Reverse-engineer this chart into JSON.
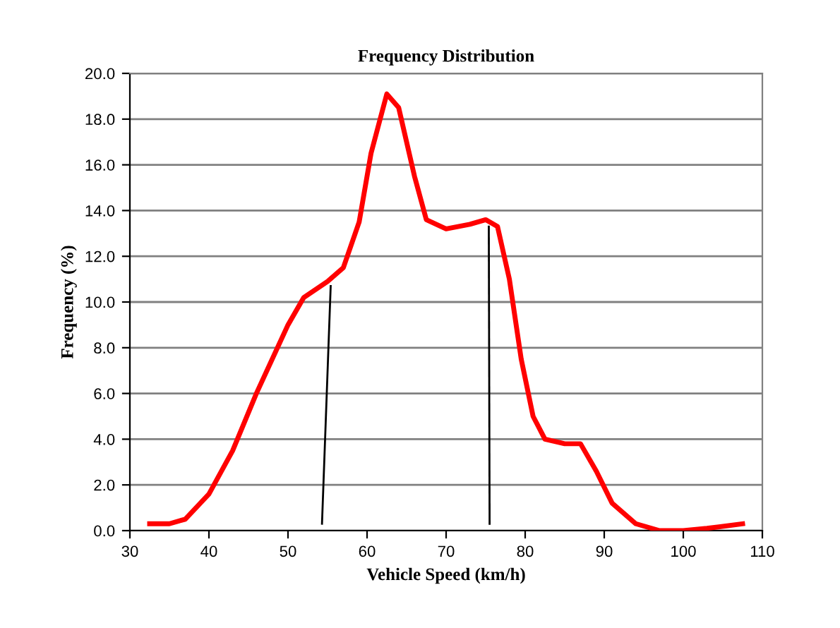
{
  "chart_data": {
    "type": "line",
    "title": "Frequency Distribution",
    "xlabel": "Vehicle Speed (km/h)",
    "ylabel": "Frequency (%)",
    "xlim": [
      30,
      110
    ],
    "xticks": [
      30,
      40,
      50,
      60,
      70,
      80,
      90,
      100,
      110
    ],
    "ylim": [
      0,
      20
    ],
    "yticks": [
      {
        "value": 0,
        "label": "0.0"
      },
      {
        "value": 2,
        "label": "2.0"
      },
      {
        "value": 4,
        "label": "4.0"
      },
      {
        "value": 6,
        "label": "6.0"
      },
      {
        "value": 8,
        "label": "8.0"
      },
      {
        "value": 10,
        "label": "10.0"
      },
      {
        "value": 12,
        "label": "12.0"
      },
      {
        "value": 14,
        "label": "14.0"
      },
      {
        "value": 16,
        "label": "16.0"
      },
      {
        "value": 18,
        "label": "18.0"
      },
      {
        "value": 20,
        "label": "20.0"
      }
    ],
    "grid": "y",
    "legend": false,
    "marker": "none",
    "line_style": "solid",
    "series": [
      {
        "color": "#ff0000",
        "x": [
          32.5,
          35,
          37,
          40,
          43,
          46,
          50,
          52,
          55,
          57,
          59,
          60.5,
          62.5,
          64,
          66,
          67.5,
          70,
          73,
          75,
          76.5,
          78,
          79.5,
          81,
          82.5,
          85,
          87,
          89,
          91,
          94,
          97,
          100,
          103,
          107.5
        ],
        "values": [
          0.3,
          0.3,
          0.5,
          1.6,
          3.5,
          6.0,
          9.0,
          10.2,
          10.9,
          11.5,
          13.5,
          16.5,
          19.1,
          18.5,
          15.5,
          13.6,
          13.2,
          13.4,
          13.6,
          13.3,
          11.0,
          7.5,
          5.0,
          4.0,
          3.8,
          3.8,
          2.6,
          1.2,
          0.3,
          0.0,
          0.0,
          0.1,
          0.3
        ]
      },
      {
        "color": "#000000",
        "x": [
          54.3,
          55.4
        ],
        "values": [
          0.3,
          10.7
        ]
      },
      {
        "color": "#000000",
        "x": [
          75.5,
          75.4
        ],
        "values": [
          0.3,
          13.3
        ]
      }
    ]
  }
}
